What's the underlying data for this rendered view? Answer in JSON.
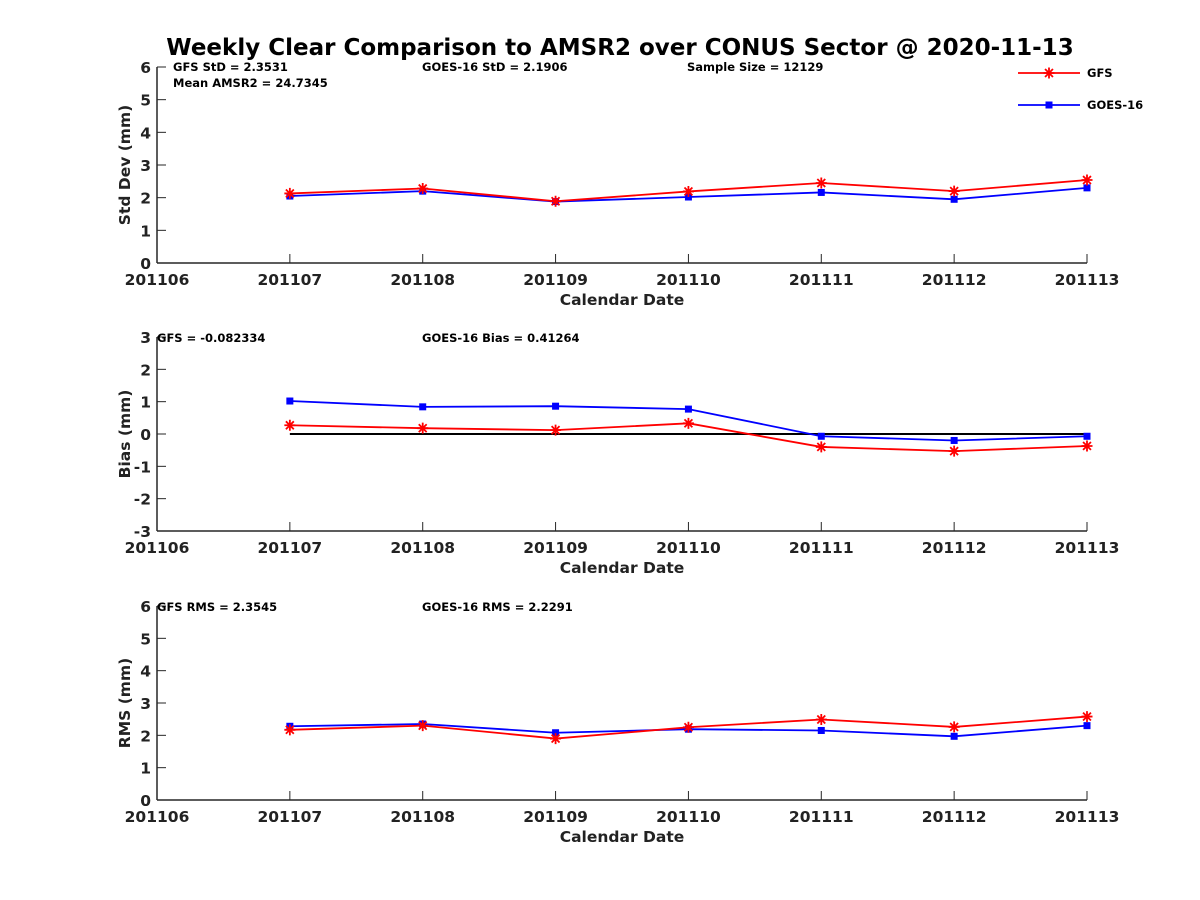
{
  "title": "Weekly Clear Comparison to AMSR2 over CONUS Sector @ 2020-11-13",
  "colors": {
    "gfs": "#ff0000",
    "goes": "#0000ff",
    "axis": "#262626",
    "zero_line": "#000000"
  },
  "legend": [
    {
      "label": "GFS",
      "color": "#ff0000",
      "marker": "star"
    },
    {
      "label": "GOES-16",
      "color": "#0000ff",
      "marker": "square"
    }
  ],
  "chart_data": [
    {
      "type": "line",
      "ylabel": "Std Dev (mm)",
      "xlabel": "Calendar Date",
      "categories": [
        "201106",
        "201107",
        "201108",
        "201109",
        "201110",
        "201111",
        "201112",
        "201113"
      ],
      "ylim": [
        0,
        6
      ],
      "yticks": [
        "0",
        "1",
        "2",
        "3",
        "4",
        "5",
        "6"
      ],
      "series": [
        {
          "name": "GFS",
          "values": [
            null,
            2.13,
            2.28,
            1.89,
            2.19,
            2.45,
            2.2,
            2.54
          ]
        },
        {
          "name": "GOES-16",
          "values": [
            null,
            2.05,
            2.2,
            1.88,
            2.02,
            2.16,
            1.95,
            2.3
          ]
        }
      ],
      "annotations": [
        "GFS StD = 2.3531",
        "GOES-16 StD = 2.1906",
        "Sample Size = 12129",
        "Mean AMSR2 = 24.7345"
      ]
    },
    {
      "type": "line",
      "ylabel": "Bias (mm)",
      "xlabel": "Calendar Date",
      "categories": [
        "201106",
        "201107",
        "201108",
        "201109",
        "201110",
        "201111",
        "201112",
        "201113"
      ],
      "ylim": [
        -3,
        3
      ],
      "yticks": [
        "-3",
        "-2",
        "-1",
        "0",
        "1",
        "2",
        "3"
      ],
      "series": [
        {
          "name": "GFS",
          "values": [
            null,
            0.27,
            0.18,
            0.12,
            0.33,
            -0.4,
            -0.53,
            -0.37
          ]
        },
        {
          "name": "GOES-16",
          "values": [
            null,
            1.02,
            0.84,
            0.86,
            0.77,
            -0.07,
            -0.2,
            -0.07
          ]
        }
      ],
      "reference_line": {
        "y": 0,
        "from": "201107",
        "to": "201113"
      },
      "annotations": [
        "GFS = -0.082334",
        "GOES-16 Bias  = 0.41264"
      ]
    },
    {
      "type": "line",
      "ylabel": "RMS (mm)",
      "xlabel": "Calendar Date",
      "categories": [
        "201106",
        "201107",
        "201108",
        "201109",
        "201110",
        "201111",
        "201112",
        "201113"
      ],
      "ylim": [
        0,
        6
      ],
      "yticks": [
        "0",
        "1",
        "2",
        "3",
        "4",
        "5",
        "6"
      ],
      "series": [
        {
          "name": "GFS",
          "values": [
            null,
            2.17,
            2.3,
            1.9,
            2.25,
            2.49,
            2.26,
            2.58
          ]
        },
        {
          "name": "GOES-16",
          "values": [
            null,
            2.28,
            2.35,
            2.08,
            2.19,
            2.15,
            1.97,
            2.3
          ]
        }
      ],
      "annotations": [
        "GFS RMS = 2.3545",
        "GOES-16 RMS = 2.2291"
      ]
    }
  ]
}
